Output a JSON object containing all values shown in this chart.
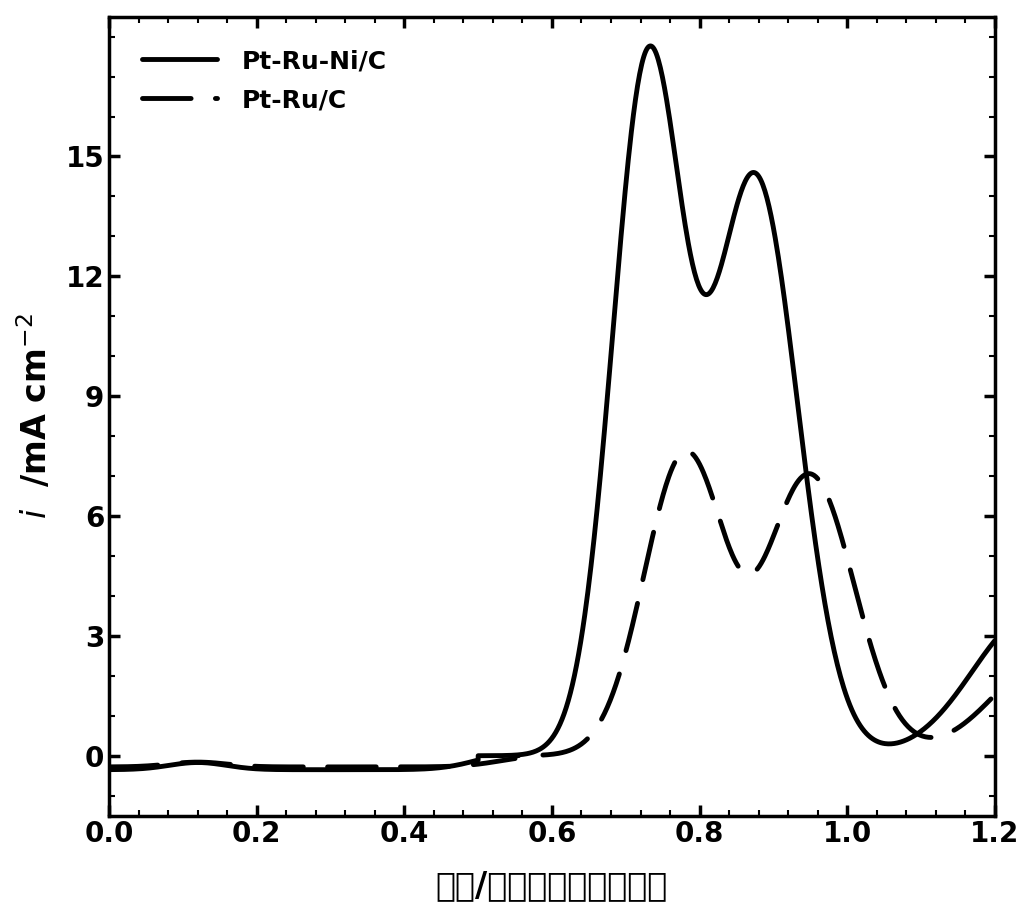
{
  "title": "",
  "xlabel": "电位/伏特（可逆氢电极）",
  "ylabel": "$i$  /mA cm$^{-2}$",
  "xlim": [
    0.0,
    1.2
  ],
  "ylim": [
    -1.5,
    18.5
  ],
  "xticks": [
    0.0,
    0.2,
    0.4,
    0.6,
    0.8,
    1.0,
    1.2
  ],
  "yticks": [
    0,
    3,
    6,
    9,
    12,
    15
  ],
  "line1_label": "Pt-Ru-Ni/C",
  "line2_label": "Pt-Ru/C",
  "background_color": "#ffffff",
  "line_color": "#000000",
  "linewidth_solid": 3.5,
  "linewidth_dashed": 3.5
}
